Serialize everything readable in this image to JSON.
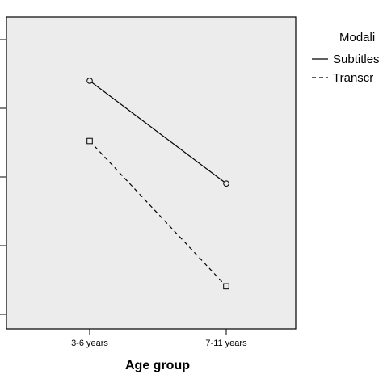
{
  "chart_data": {
    "type": "line",
    "categories": [
      "3-6 years",
      "7-11 years"
    ],
    "xlabel": "Age group",
    "ylabel": "",
    "ylim": [
      0,
      4.4
    ],
    "grid": false,
    "legend": {
      "title": "Modali",
      "placement": "right",
      "entries": [
        "Subtitles",
        "Transcr"
      ]
    },
    "series": [
      {
        "name": "Subtitles",
        "values": [
          3.5,
          2.05
        ],
        "marker": "circle",
        "dash": "solid"
      },
      {
        "name": "Transcr",
        "values": [
          2.65,
          0.6
        ],
        "marker": "square",
        "dash": "dashed"
      }
    ],
    "colors": {
      "plot_background": "#ececec",
      "line": "#000000"
    }
  }
}
